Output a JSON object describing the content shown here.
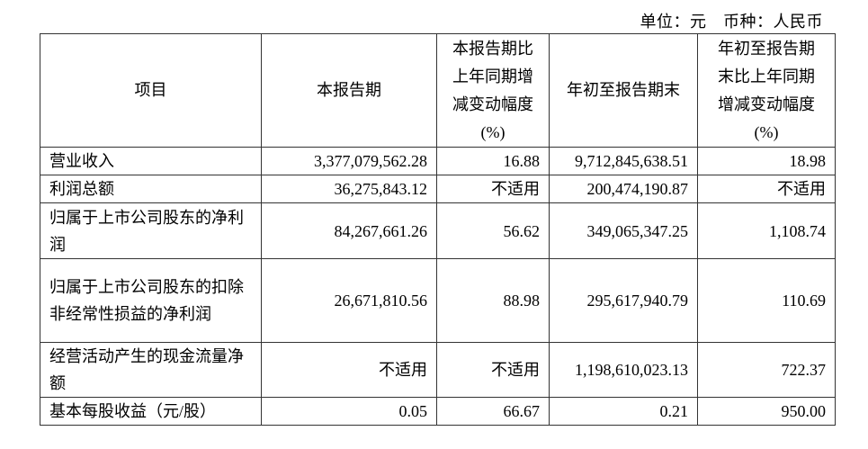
{
  "unit_line": "单位：元　币种：人民币",
  "headers": [
    "项目",
    "本报告期",
    "本报告期比上年同期增减变动幅度(%)",
    "年初至报告期末",
    "年初至报告期末比上年同期增减变动幅度(%)"
  ],
  "header_lines": {
    "col3": [
      "本报告期比",
      "上年同期增",
      "减变动幅度",
      "(%)"
    ],
    "col5": [
      "年初至报告期",
      "末比上年同期",
      "增减变动幅度",
      "(%)"
    ]
  },
  "rows": [
    {
      "item": "营业收入",
      "current": "3,377,079,562.28",
      "current_change": "16.88",
      "ytd": "9,712,845,638.51",
      "ytd_change": "18.98"
    },
    {
      "item": "利润总额",
      "current": "36,275,843.12",
      "current_change": "不适用",
      "ytd": "200,474,190.87",
      "ytd_change": "不适用"
    },
    {
      "item": "归属于上市公司股东的净利润",
      "current": "84,267,661.26",
      "current_change": "56.62",
      "ytd": "349,065,347.25",
      "ytd_change": "1,108.74"
    },
    {
      "item": "归属于上市公司股东的扣除非经常性损益的净利润",
      "current": "26,671,810.56",
      "current_change": "88.98",
      "ytd": "295,617,940.79",
      "ytd_change": "110.69"
    },
    {
      "item": "经营活动产生的现金流量净额",
      "current": "不适用",
      "current_change": "不适用",
      "ytd": "1,198,610,023.13",
      "ytd_change": "722.37"
    },
    {
      "item": "基本每股收益（元/股）",
      "current": "0.05",
      "current_change": "66.67",
      "ytd": "0.21",
      "ytd_change": "950.00"
    }
  ]
}
